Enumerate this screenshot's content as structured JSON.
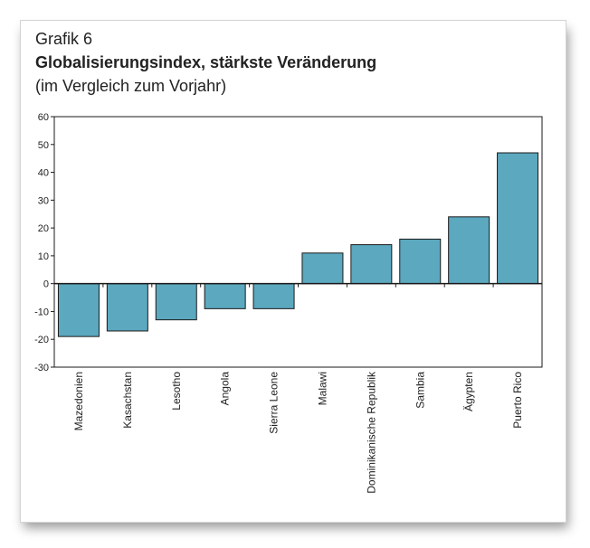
{
  "header": {
    "label": "Grafik 6",
    "title": "Globalisierungsindex, stärkste Veränderung",
    "subtitle": "(im Vergleich zum Vorjahr)"
  },
  "colors": {
    "bar": "#5ba8bf",
    "outline": "#1a1a1a"
  },
  "chart_data": {
    "type": "bar",
    "title": "Globalisierungsindex, stärkste Veränderung",
    "subtitle": "(im Vergleich zum Vorjahr)",
    "categories": [
      "Mazedonien",
      "Kasachstan",
      "Lesotho",
      "Angola",
      "Sierra Leone",
      "Malawi",
      "Dominikanische Republik",
      "Sambia",
      "Ägypten",
      "Puerto Rico"
    ],
    "values": [
      -19,
      -17,
      -13,
      -9,
      -9,
      11,
      14,
      16,
      24,
      47
    ],
    "ylim": [
      -30,
      60
    ],
    "yticks": [
      "60",
      "50",
      "40",
      "30",
      "20",
      "10",
      "0",
      "-10",
      "-20",
      "-30"
    ],
    "xlabel": "",
    "ylabel": "",
    "grid": false,
    "legend": false
  }
}
